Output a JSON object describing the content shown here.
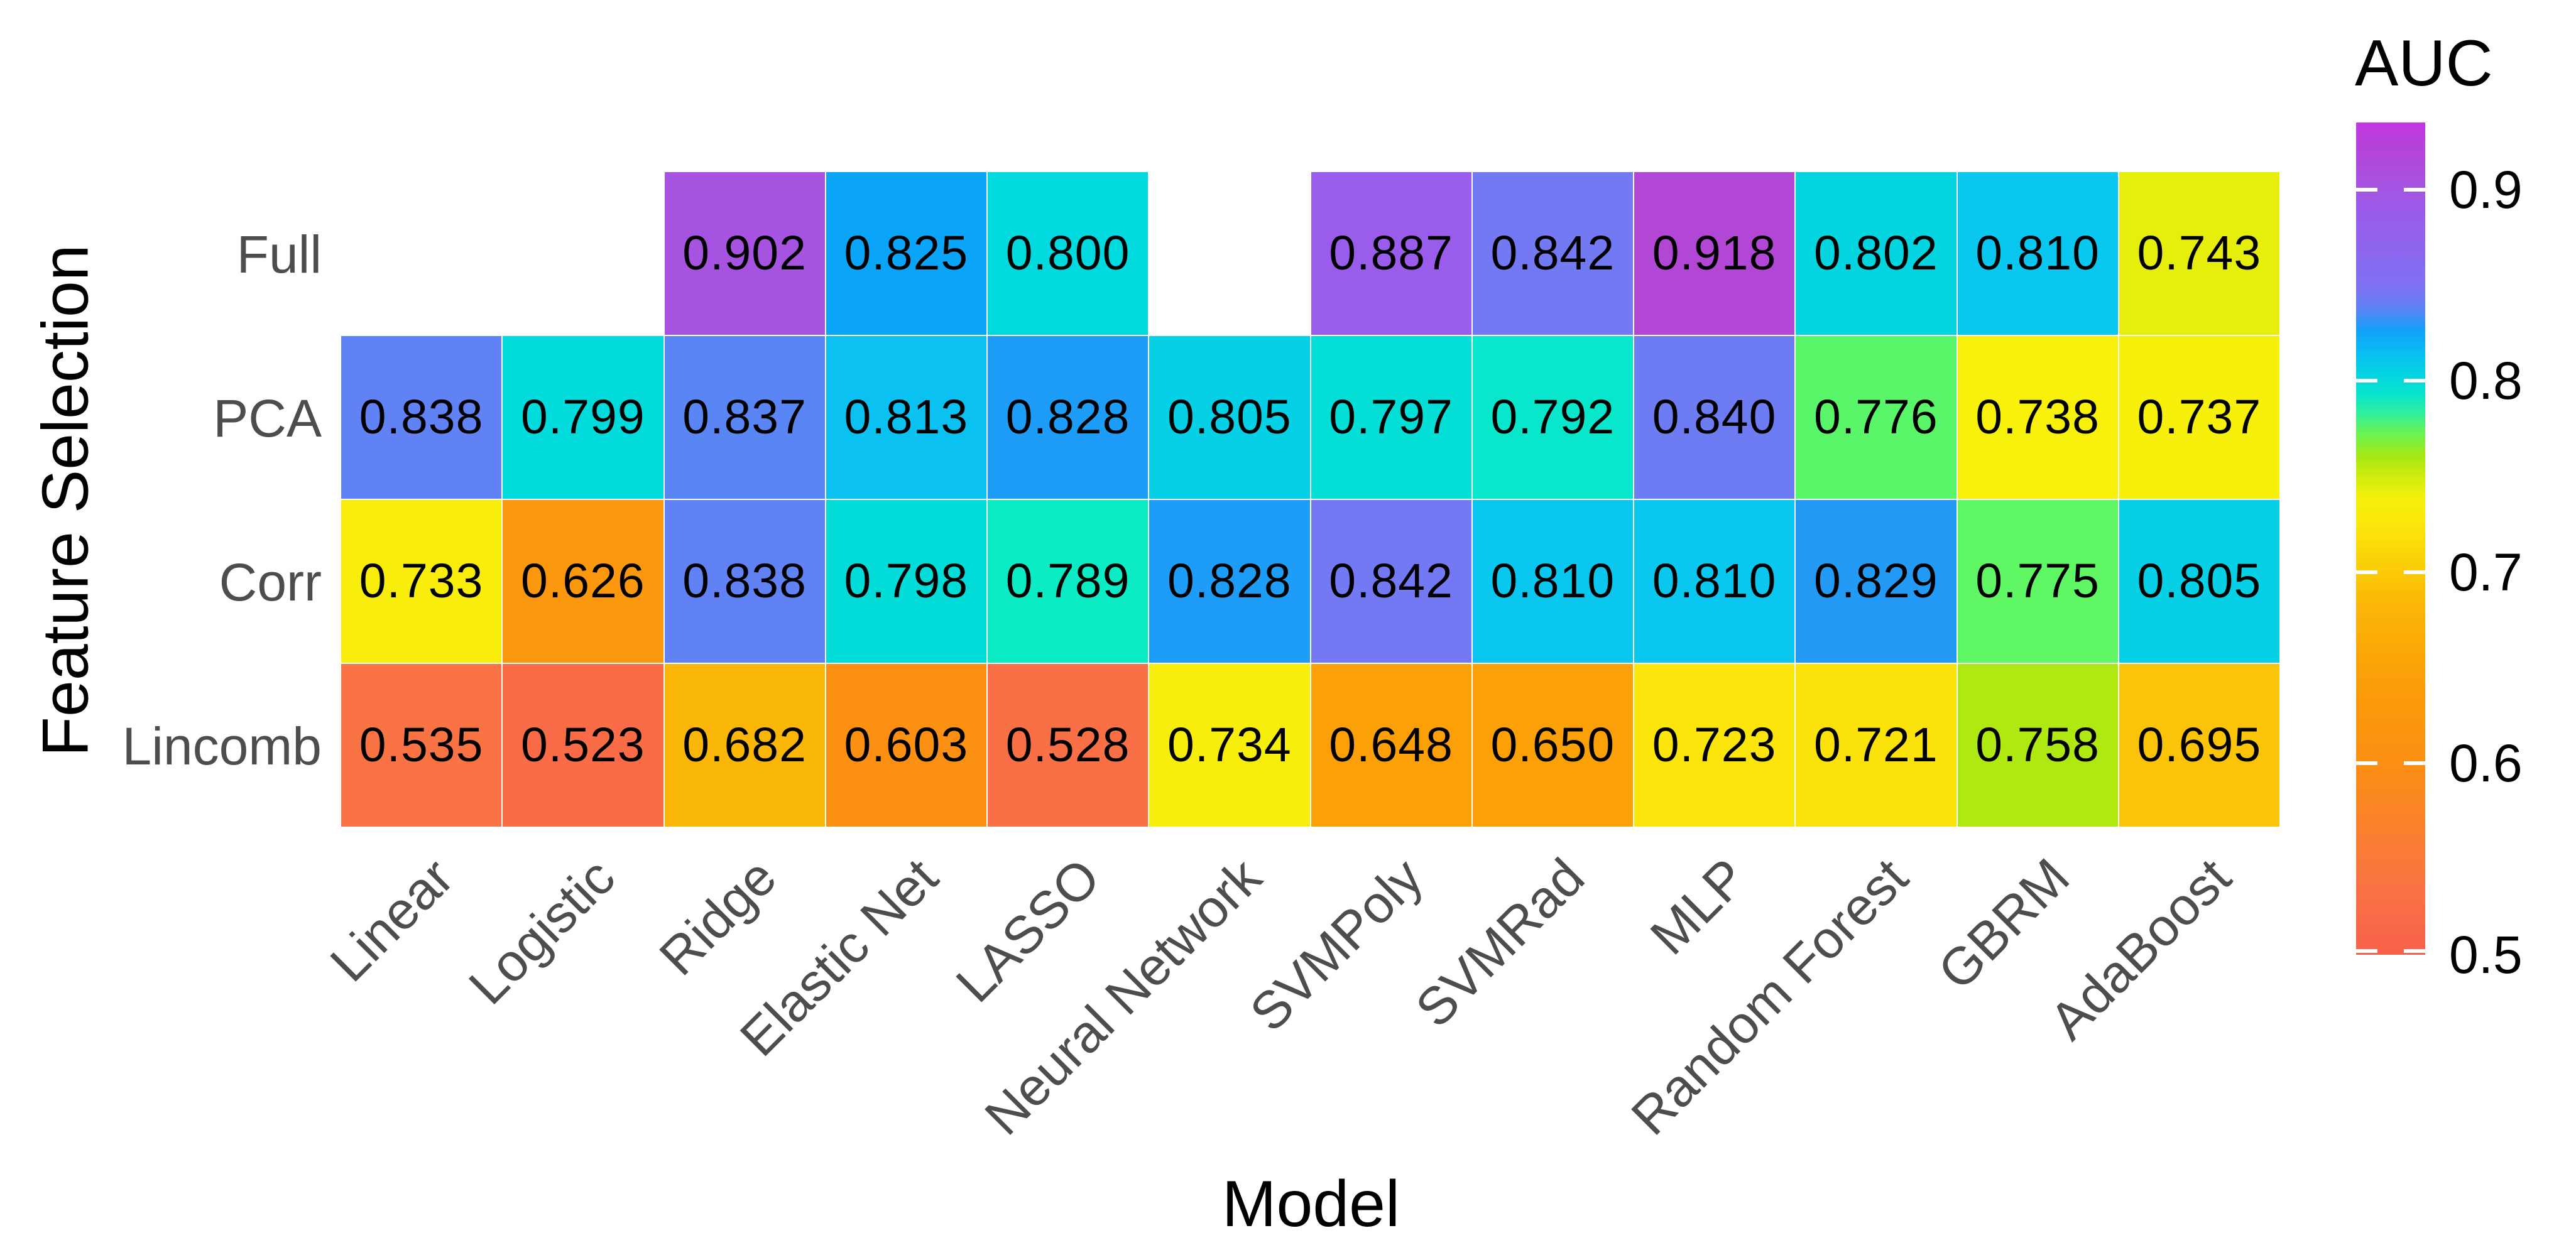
{
  "figure": {
    "x_axis_title": "Model",
    "y_axis_title": "Feature Selection",
    "legend_title": "AUC"
  },
  "chart_data": {
    "type": "heatmap",
    "title": "",
    "xlabel": "Model",
    "ylabel": "Feature Selection",
    "x_categories": [
      "Linear",
      "Logistic",
      "Ridge",
      "Elastic Net",
      "LASSO",
      "Neural Network",
      "SVMPoly",
      "SVMRad",
      "MLP",
      "Random Forest",
      "GBRM",
      "AdaBoost"
    ],
    "y_categories": [
      "Full",
      "PCA",
      "Corr",
      "Lincomb"
    ],
    "values": [
      [
        null,
        null,
        0.902,
        0.825,
        0.8,
        null,
        0.887,
        0.842,
        0.918,
        0.802,
        0.81,
        0.743
      ],
      [
        0.838,
        0.799,
        0.837,
        0.813,
        0.828,
        0.805,
        0.797,
        0.792,
        0.84,
        0.776,
        0.738,
        0.737
      ],
      [
        0.733,
        0.626,
        0.838,
        0.798,
        0.789,
        0.828,
        0.842,
        0.81,
        0.81,
        0.829,
        0.775,
        0.805
      ],
      [
        0.535,
        0.523,
        0.682,
        0.603,
        0.528,
        0.734,
        0.648,
        0.65,
        0.723,
        0.721,
        0.758,
        0.695
      ]
    ],
    "value_decimals": 3,
    "colorbar": {
      "title": "AUC",
      "domain": [
        0.5,
        0.935
      ],
      "ticks": [
        0.9,
        0.8,
        0.7,
        0.6,
        0.5
      ]
    },
    "colormap_stops": [
      [
        0.5,
        "#F8604A"
      ],
      [
        0.535,
        "#F97345"
      ],
      [
        0.6,
        "#FB8F13"
      ],
      [
        0.65,
        "#FBA107"
      ],
      [
        0.685,
        "#FBB908"
      ],
      [
        0.705,
        "#FBD007"
      ],
      [
        0.725,
        "#FBE70B"
      ],
      [
        0.738,
        "#F7F10B"
      ],
      [
        0.75,
        "#CFEC0E"
      ],
      [
        0.762,
        "#9FE813"
      ],
      [
        0.775,
        "#5FF763"
      ],
      [
        0.789,
        "#0BEBC4"
      ],
      [
        0.8,
        "#00D9DD"
      ],
      [
        0.812,
        "#0BC3F1"
      ],
      [
        0.825,
        "#0AA5F8"
      ],
      [
        0.834,
        "#448DF6"
      ],
      [
        0.84,
        "#6E7CF4"
      ],
      [
        0.846,
        "#7B74F2"
      ],
      [
        0.87,
        "#8E65EE"
      ],
      [
        0.89,
        "#9C5AE9"
      ],
      [
        0.905,
        "#A851DF"
      ],
      [
        0.92,
        "#B345D5"
      ],
      [
        0.935,
        "#C437E4"
      ]
    ],
    "colors": {
      "cell_text": "#000000",
      "axis_tick_text": "#4D4D4D",
      "axis_title_text": "#000000",
      "legend_text": "#000000",
      "background": "#FFFFFF",
      "tile_gap": "#FFFFFF"
    },
    "layout_hints": {
      "legend_position": "right",
      "x_tick_angle_deg": 45,
      "grid": false
    }
  }
}
